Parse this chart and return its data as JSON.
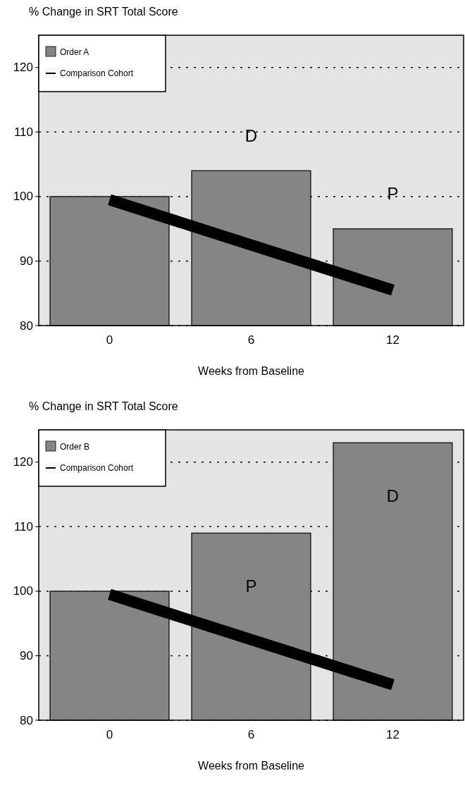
{
  "chart_data": [
    {
      "type": "bar",
      "title": "% Change in SRT Total Score",
      "xlabel": "Weeks from Baseline",
      "categories": [
        "0",
        "6",
        "12"
      ],
      "ylim": [
        80,
        125
      ],
      "yticks": [
        80,
        90,
        100,
        110,
        120
      ],
      "grid": "y",
      "legend": "top left",
      "series": [
        {
          "name": "Order A",
          "color": "#858585",
          "values": [
            100,
            104,
            95
          ]
        },
        {
          "name": "Comparison Cohort",
          "type": "line",
          "color": "#000000",
          "values": [
            99.5,
            92.5,
            85.5
          ]
        }
      ],
      "annotations": [
        "D",
        "P"
      ]
    },
    {
      "type": "bar",
      "title": "% Change in SRT Total Score",
      "xlabel": "Weeks from Baseline",
      "categories": [
        "0",
        "6",
        "12"
      ],
      "ylim": [
        80,
        125
      ],
      "yticks": [
        80,
        90,
        100,
        110,
        120
      ],
      "grid": "y",
      "legend": "top left",
      "series": [
        {
          "name": "Order B",
          "color": "#858585",
          "values": [
            100,
            109,
            123
          ]
        },
        {
          "name": "Comparison Cohort",
          "type": "line",
          "color": "#000000",
          "values": [
            99.5,
            92.5,
            85.5
          ]
        }
      ],
      "annotations": [
        "P",
        "D"
      ]
    }
  ]
}
